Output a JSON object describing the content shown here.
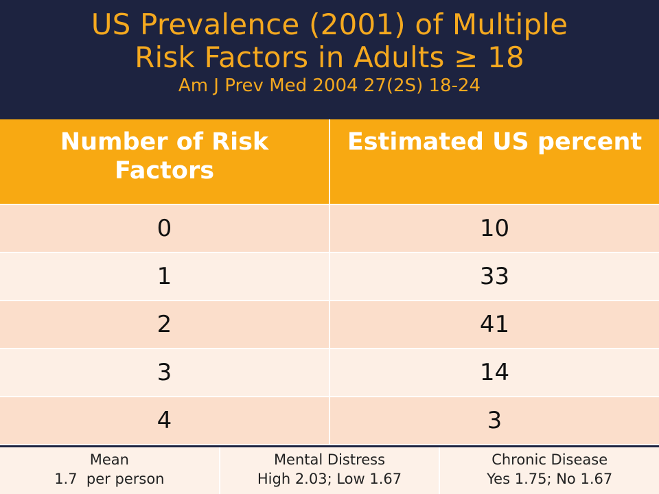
{
  "slide": {
    "title_line1": "US Prevalence (2001) of Multiple",
    "title_line2": "Risk Factors in Adults ≥ 18",
    "citation": "Am J Prev Med 2004 27(2S) 18-24",
    "colors": {
      "background": "#1d2340",
      "title": "#f5a91f",
      "header_fill": "#f8a912",
      "row_dark": "#fbdecb",
      "row_light": "#fdefe5"
    }
  },
  "table": {
    "headers": [
      "Number of Risk Factors",
      "Estimated US percent"
    ],
    "rows": [
      [
        "0",
        "10"
      ],
      [
        "1",
        "33"
      ],
      [
        "2",
        "41"
      ],
      [
        "3",
        "14"
      ],
      [
        "4",
        "3"
      ]
    ]
  },
  "footer": [
    {
      "label": "Mean",
      "value": "1.7  per person"
    },
    {
      "label": "Mental Distress",
      "value": "High 2.03; Low 1.67"
    },
    {
      "label": "Chronic Disease",
      "value": "Yes 1.75; No 1.67"
    }
  ]
}
